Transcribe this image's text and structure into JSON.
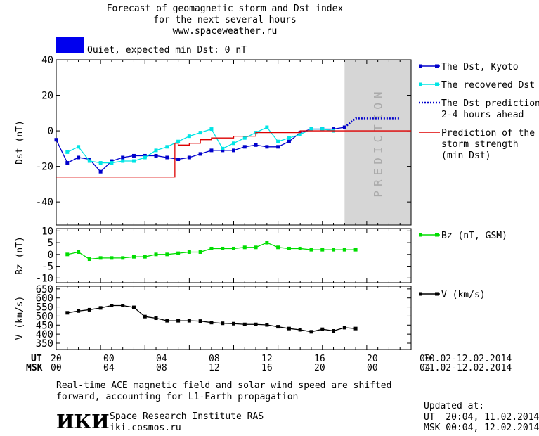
{
  "title_lines": [
    "Forecast of geomagnetic storm and Dst index",
    "for the next several hours",
    "www.spaceweather.ru"
  ],
  "status": {
    "color": "#0000ee",
    "text": "Quiet, expected min Dst: 0 nT"
  },
  "prediction_label": "PREDICTION",
  "time_axis": {
    "ut_label": "UT",
    "msk_label": "MSK",
    "ut_ticks": [
      "20",
      "00",
      "04",
      "08",
      "12",
      "16",
      "20",
      "00"
    ],
    "msk_ticks": [
      "00",
      "04",
      "08",
      "12",
      "16",
      "20",
      "00",
      "04"
    ],
    "ut_dates": "10.02-12.02.2014",
    "msk_dates": "11.02-12.02.2014"
  },
  "note_lines": [
    "Real-time ACE magnetic field and solar wind speed are shifted",
    "forward, accounting for L1-Earth propagation"
  ],
  "institute": {
    "logo_text": "ИКИ",
    "name": "Space Research Institute RAS",
    "url": "iki.cosmos.ru"
  },
  "updated": {
    "label": "Updated at:",
    "ut": "UT  20:04, 11.02.2014",
    "msk": "MSK 00:04, 12.02.2014"
  },
  "chart_data": [
    {
      "type": "line",
      "ylabel": "Dst (nT)",
      "ylim": [
        -53,
        40
      ],
      "yticks": [
        40,
        20,
        0,
        -20,
        -40
      ],
      "xlim": [
        0,
        32
      ],
      "prediction_region": [
        26,
        32
      ],
      "legend": [
        {
          "label": "The Dst, Kyoto",
          "color": "#0000cc"
        },
        {
          "label": "The recovered Dst",
          "color": "#00e5e5"
        },
        {
          "label": "The Dst prediction\n2-4 hours ahead",
          "color": "#0000cc"
        },
        {
          "label": "Prediction of the\nstorm strength\n(min Dst)",
          "color": "#dd0000"
        }
      ],
      "series": [
        {
          "name": "The Dst, Kyoto",
          "color": "#0000cc",
          "marker": "square",
          "x": [
            0,
            1,
            2,
            3,
            4,
            5,
            6,
            7,
            8,
            9,
            10,
            11,
            12,
            13,
            14,
            15,
            16,
            17,
            18,
            19,
            20,
            21,
            22,
            23,
            24,
            25,
            26
          ],
          "values": [
            -5,
            -18,
            -15,
            -16,
            -23,
            -17,
            -15,
            -14,
            -14,
            -14,
            -15,
            -16,
            -15,
            -13,
            -11,
            -11,
            -11,
            -9,
            -8,
            -9,
            -9,
            -6,
            -1,
            1,
            1,
            1,
            2
          ]
        },
        {
          "name": "The recovered Dst",
          "color": "#00e5e5",
          "marker": "square",
          "x": [
            1,
            2,
            3,
            4,
            5,
            6,
            7,
            8,
            9,
            10,
            11,
            12,
            13,
            14,
            15,
            16,
            17,
            18,
            19,
            20,
            21,
            22,
            23,
            24,
            25
          ],
          "values": [
            -12,
            -9,
            -17,
            -18,
            -18,
            -17,
            -17,
            -15,
            -11,
            -9,
            -6,
            -3,
            -1,
            1,
            -10,
            -7,
            -4,
            -1,
            2,
            -6,
            -4,
            -2,
            1,
            1,
            0
          ]
        },
        {
          "name": "The Dst prediction 2-4 hours ahead",
          "color": "#0000cc",
          "dashed": true,
          "x": [
            26,
            27,
            28,
            29,
            30,
            31
          ],
          "values": [
            2,
            7,
            7,
            7,
            7,
            7
          ]
        },
        {
          "name": "Prediction of the storm strength (min Dst)",
          "color": "#dd0000",
          "step": true,
          "x": [
            0,
            10,
            10.7,
            11,
            12,
            13,
            14,
            15,
            16,
            17,
            18,
            19,
            20,
            21,
            22,
            23,
            24,
            25,
            26,
            27,
            32
          ],
          "values": [
            -26,
            -26,
            -7,
            -8,
            -7,
            -5,
            -4,
            -4,
            -3,
            -3,
            -1,
            -1,
            -1,
            -1,
            0,
            0,
            0,
            0,
            0,
            0,
            0
          ]
        }
      ]
    },
    {
      "type": "line",
      "ylabel": "Bz (nT)",
      "ylim": [
        -12,
        11
      ],
      "yticks": [
        10,
        5,
        0,
        -5,
        -10
      ],
      "xlim": [
        0,
        32
      ],
      "legend": [
        {
          "label": "Bz (nT, GSM)",
          "color": "#00dd00"
        }
      ],
      "series": [
        {
          "name": "Bz (nT, GSM)",
          "color": "#00dd00",
          "marker": "square",
          "x": [
            1,
            2,
            3,
            4,
            5,
            6,
            7,
            8,
            9,
            10,
            11,
            12,
            13,
            14,
            15,
            16,
            17,
            18,
            19,
            20,
            21,
            22,
            23,
            24,
            25,
            26,
            27
          ],
          "values": [
            0,
            1,
            -2,
            -1.5,
            -1.5,
            -1.5,
            -1,
            -1,
            0,
            0,
            0.5,
            1,
            1,
            2.5,
            2.5,
            2.5,
            3,
            3,
            5,
            3,
            2.5,
            2.5,
            2,
            2,
            2,
            2,
            2
          ]
        }
      ]
    },
    {
      "type": "line",
      "ylabel": "V (km/s)",
      "ylim": [
        315,
        665
      ],
      "yticks": [
        650,
        600,
        550,
        500,
        450,
        400,
        350
      ],
      "xlim": [
        0,
        32
      ],
      "legend": [
        {
          "label": "V (km/s)",
          "color": "#000000"
        }
      ],
      "series": [
        {
          "name": "V (km/s)",
          "color": "#000000",
          "marker": "square",
          "x": [
            1,
            2,
            3,
            4,
            5,
            6,
            7,
            8,
            9,
            10,
            11,
            12,
            13,
            14,
            15,
            16,
            17,
            18,
            19,
            20,
            21,
            22,
            23,
            24,
            25,
            26,
            27
          ],
          "values": [
            518,
            528,
            535,
            545,
            558,
            558,
            548,
            497,
            488,
            474,
            474,
            474,
            472,
            464,
            460,
            458,
            454,
            454,
            451,
            441,
            431,
            424,
            413,
            427,
            418,
            436,
            431
          ]
        }
      ]
    }
  ]
}
